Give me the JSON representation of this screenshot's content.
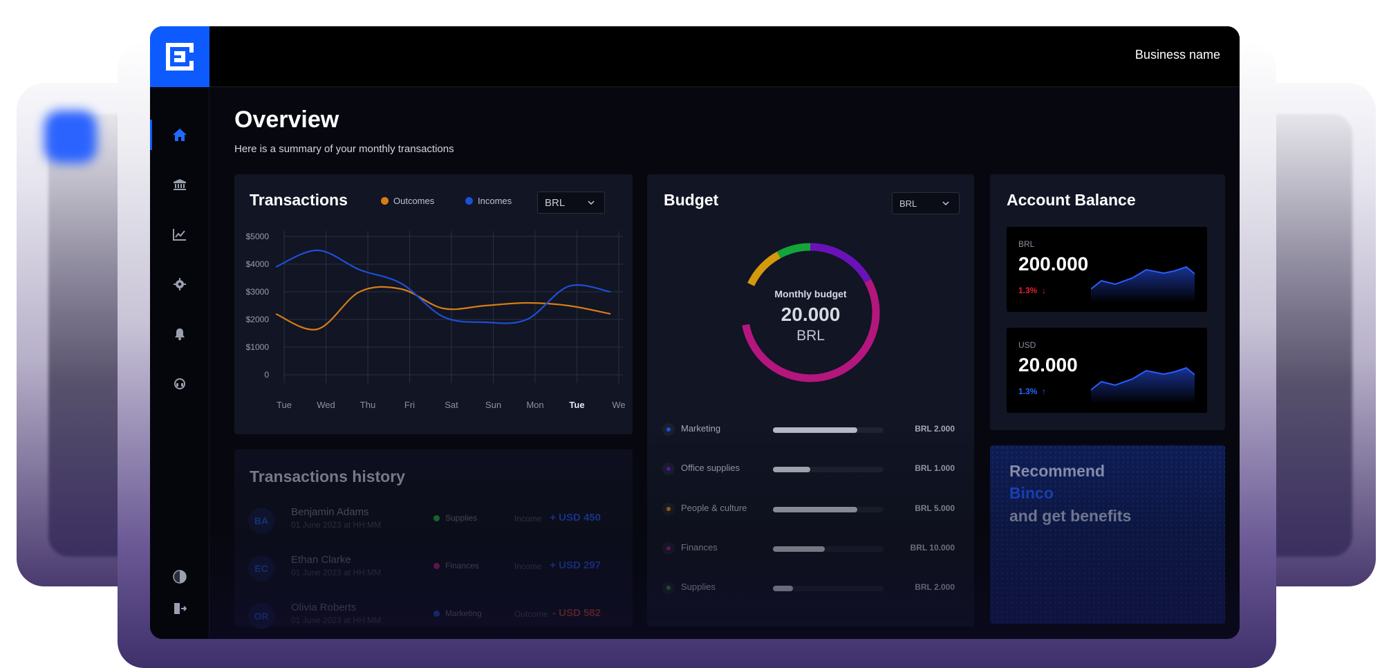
{
  "header": {
    "business_name": "Business name"
  },
  "sidebar": {
    "items": [
      {
        "icon": "home-icon",
        "active": true
      },
      {
        "icon": "bank-icon"
      },
      {
        "icon": "chart-icon"
      },
      {
        "icon": "gear-icon"
      },
      {
        "icon": "bell-icon"
      },
      {
        "icon": "support-icon"
      }
    ],
    "bottom": [
      {
        "icon": "theme-toggle-icon"
      },
      {
        "icon": "logout-icon"
      }
    ]
  },
  "overview": {
    "title": "Overview",
    "subtitle": "Here is a summary of your monthly transactions"
  },
  "transactions": {
    "title": "Transactions",
    "legend_outcomes": "Outcomes",
    "legend_incomes": "Incomes",
    "currency": "BRL"
  },
  "chart_data": {
    "type": "line",
    "title": "Transactions",
    "categories": [
      "Tue",
      "Wed",
      "Thu",
      "Fri",
      "Sat",
      "Sun",
      "Mon",
      "Tue",
      "We"
    ],
    "y_tick_labels": [
      "$5000",
      "$4000",
      "$3000",
      "$2000",
      "$1000",
      "0"
    ],
    "ylim": [
      0,
      5000
    ],
    "grid": true,
    "legend": "top",
    "series": [
      {
        "name": "Outcomes",
        "color": "#d67d14",
        "values": [
          2200,
          1650,
          3000,
          3100,
          2400,
          2500,
          2600,
          2500,
          2200
        ]
      },
      {
        "name": "Incomes",
        "color": "#1f4fd6",
        "values": [
          3900,
          4500,
          3800,
          3300,
          2100,
          1900,
          2000,
          3200,
          3000
        ]
      }
    ],
    "bold_category_index": 7
  },
  "history": {
    "title": "Transactions history",
    "rows": [
      {
        "initials": "BA",
        "name": "Benjamin Adams",
        "date": "01 June 2023 at HH:MM",
        "category": "Supplies",
        "cat_color": "#1f8a3a",
        "type": "Income",
        "amount": "+ USD 450",
        "amount_color": "#1f44b8"
      },
      {
        "initials": "EC",
        "name": "Ethan Clarke",
        "date": "01 June 2023 at HH:MM",
        "category": "Finances",
        "cat_color": "#a0186e",
        "type": "Income",
        "amount": "+ USD 297",
        "amount_color": "#1f44b8"
      },
      {
        "initials": "OR",
        "name": "Olivia Roberts",
        "date": "01 June 2023 at HH:MM",
        "category": "Marketing",
        "cat_color": "#1f44b8",
        "type": "Outcome",
        "amount": "- USD 582",
        "amount_color": "#9c3a2a"
      }
    ]
  },
  "budget": {
    "title": "Budget",
    "currency": "BRL",
    "center_label": "Monthly budget",
    "center_value": "20.000",
    "center_currency": "BRL",
    "rows": [
      {
        "label": "Marketing",
        "value": "BRL 2.000",
        "dot_color": "#1f55d6",
        "fill": 0.76
      },
      {
        "label": "Office supplies",
        "value": "BRL 1.000",
        "dot_color": "#6a12b8",
        "fill": 0.34
      },
      {
        "label": "People & culture",
        "value": "BRL 5.000",
        "dot_color": "#c47a12",
        "fill": 0.76
      },
      {
        "label": "Finances",
        "value": "BRL 10.000",
        "dot_color": "#a2177a",
        "fill": 0.47
      },
      {
        "label": "Supplies",
        "value": "BRL 2.000",
        "dot_color": "#1f8a3a",
        "fill": 0.18
      }
    ],
    "ring_segments": [
      {
        "color": "#d49a0c",
        "fraction": 0.1
      },
      {
        "color": "#14a53a",
        "fraction": 0.1
      },
      {
        "color": "#2a8ad6",
        "fraction": 0.08
      },
      {
        "color": "#6a12b8",
        "fraction": 0.17
      },
      {
        "color": "#b4167e",
        "fraction": 0.55
      }
    ]
  },
  "balance": {
    "title": "Account Balance",
    "accounts": [
      {
        "currency": "BRL",
        "value": "200.000",
        "change": "1.3%",
        "direction": "down",
        "change_color": "#e0242e"
      },
      {
        "currency": "USD",
        "value": "20.000",
        "change": "1.3%",
        "direction": "up",
        "change_color": "#1f6bff"
      }
    ]
  },
  "promo": {
    "line1": "Recommend",
    "line2": "Binco",
    "line3": "and get benefits"
  }
}
